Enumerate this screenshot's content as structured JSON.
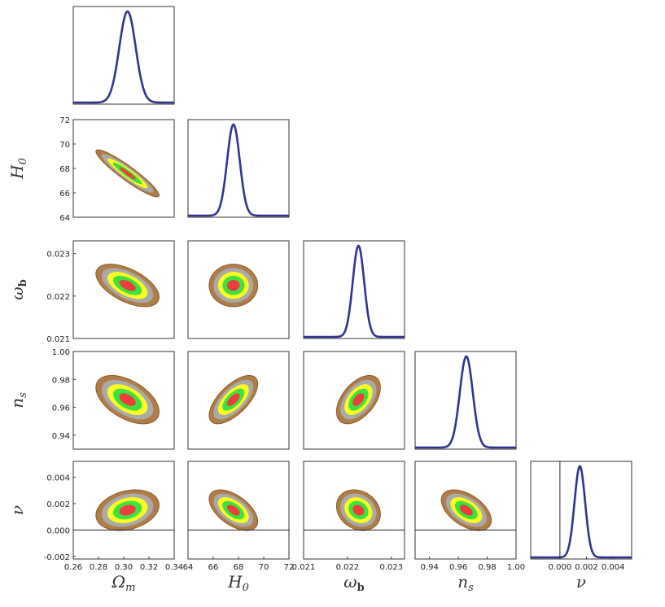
{
  "chart_data": {
    "type": "corner-plot",
    "title": "",
    "parameters": [
      {
        "key": "Om",
        "label_base": "Ω",
        "label_sub": "m",
        "range": [
          0.26,
          0.34
        ],
        "ticks": [
          "0.26",
          "0.28",
          "0.30",
          "0.32",
          "0.34"
        ],
        "tick_values": [
          0.26,
          0.28,
          0.3,
          0.32,
          0.34
        ],
        "mean": 0.303,
        "sigma": 0.0065
      },
      {
        "key": "H0",
        "label_base": "H",
        "label_sub": "0",
        "range": [
          64,
          72
        ],
        "ticks": [
          "64",
          "66",
          "68",
          "70",
          "72"
        ],
        "tick_values": [
          64,
          66,
          68,
          70,
          72
        ],
        "mean": 67.6,
        "sigma": 0.5
      },
      {
        "key": "wb",
        "label_base": "ω",
        "label_sub": "b",
        "range": [
          0.021,
          0.0233
        ],
        "ticks": [
          "0.021",
          "0.022",
          "0.023"
        ],
        "tick_values": [
          0.021,
          0.022,
          0.023
        ],
        "mean": 0.02225,
        "sigma": 0.00013
      },
      {
        "key": "ns",
        "label_base": "n",
        "label_sub": "s",
        "range": [
          0.93,
          1.0
        ],
        "ticks": [
          "0.94",
          "0.96",
          "0.98",
          "1.00"
        ],
        "tick_values": [
          0.94,
          0.96,
          0.98,
          1.0
        ],
        "mean": 0.9655,
        "sigma": 0.0045
      },
      {
        "key": "nu",
        "label_base": "ν",
        "label_sub": "",
        "range": [
          -0.0022,
          0.0054
        ],
        "y_range": [
          -0.0022,
          0.0052
        ],
        "ticks": [
          "0.000",
          "0.002",
          "0.004"
        ],
        "tick_values": [
          0.0,
          0.002,
          0.004
        ],
        "y_ticks": [
          "-0.002",
          "0.000",
          "0.002",
          "0.004"
        ],
        "y_tick_values": [
          -0.002,
          0.0,
          0.002,
          0.004
        ],
        "mean": 0.0015,
        "sigma": 0.0004
      }
    ],
    "correlations": {
      "H0|Om": -0.93,
      "wb|Om": -0.55,
      "wb|H0": 0.0,
      "ns|Om": -0.5,
      "ns|H0": 0.65,
      "ns|wb": 0.5,
      "nu|Om": 0.25,
      "nu|H0": -0.55,
      "nu|wb": -0.2,
      "nu|ns": -0.5
    },
    "contour_levels": [
      {
        "name": "level-1",
        "scale": 1.0,
        "color": "#ee3d3d"
      },
      {
        "name": "level-2",
        "scale": 1.75,
        "color": "#3ee23e"
      },
      {
        "name": "level-3",
        "scale": 2.45,
        "color": "#fbfb22"
      },
      {
        "name": "level-4",
        "scale": 3.15,
        "color": "#a9a9a9"
      },
      {
        "name": "level-5",
        "scale": 3.85,
        "color": "#b07c48"
      }
    ],
    "reference_lines": {
      "nu": 0.0
    },
    "marginal_color": "#2e3490",
    "outline_color": "#8b5a2b",
    "xlabel": "",
    "ylabel": ""
  }
}
